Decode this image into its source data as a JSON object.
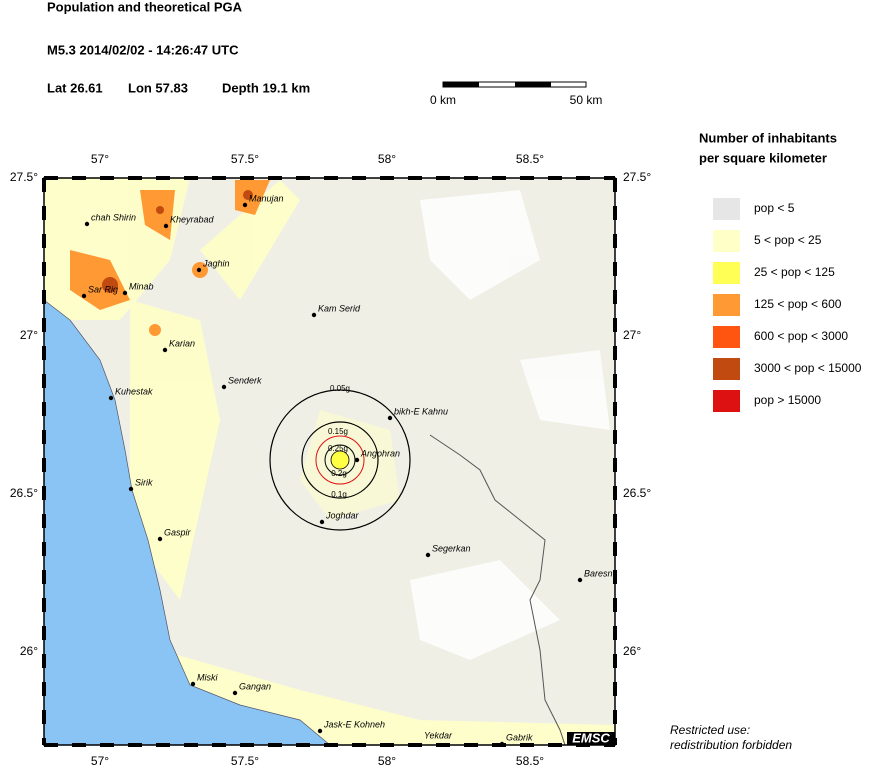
{
  "header": {
    "title": "Population and theoretical PGA",
    "event": "M5.3  2014/02/02 - 14:26:47 UTC",
    "lat": "Lat 26.61",
    "lon": "Lon 57.83",
    "depth": "Depth  19.1 km"
  },
  "scale": {
    "start": "0 km",
    "end": "50 km"
  },
  "legend": {
    "title": [
      "Number of inhabitants",
      "per square kilometer"
    ],
    "items": [
      {
        "label": "pop < 5",
        "color": "#e6e6e6"
      },
      {
        "label": "5 < pop < 25",
        "color": "#ffffc8"
      },
      {
        "label": "25 < pop < 125",
        "color": "#ffff55"
      },
      {
        "label": "125 < pop < 600",
        "color": "#ff9933"
      },
      {
        "label": "600 < pop < 3000",
        "color": "#ff5511"
      },
      {
        "label": "3000 < pop < 15000",
        "color": "#c04a10"
      },
      {
        "label": "pop > 15000",
        "color": "#dd1111"
      }
    ]
  },
  "map": {
    "lon_labels": [
      "57°",
      "57.5°",
      "58°",
      "58.5°"
    ],
    "lat_labels": [
      "27.5°",
      "27°",
      "26.5°",
      "26°"
    ],
    "cities": [
      "chah Shirin",
      "Kheyrabad",
      "Manujan",
      "Jaghin",
      "Sar Rig",
      "Minab",
      "Kam Serid",
      "Karian",
      "Senderk",
      "Kuhestak",
      "bikh-E Kahnu",
      "Angohran",
      "Sirik",
      "Joghdar",
      "Gaspir",
      "Segerkan",
      "Baresn",
      "Miski",
      "Gangan",
      "Jask-E Kohneh",
      "Yekdar",
      "Gabrik"
    ],
    "pga_labels": [
      "0.05g",
      "0.15g",
      "0.25g",
      "0.2g",
      "0.1g"
    ],
    "logo": "EMSC"
  },
  "footer": [
    "Restricted use:",
    "redistribution forbidden"
  ]
}
